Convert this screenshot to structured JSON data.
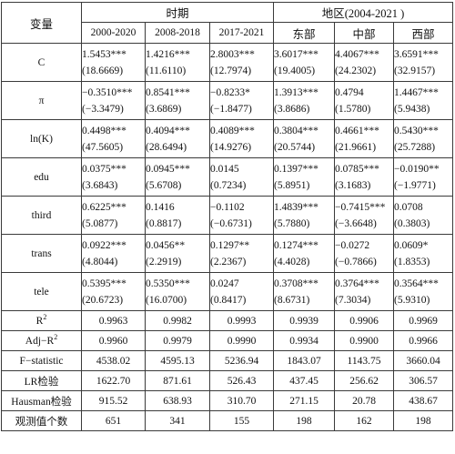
{
  "header": {
    "variable_label": "变量",
    "period_group": "时期",
    "region_group": "地区(2004-2021 )",
    "columns": [
      "2000-2020",
      "2008-2018",
      "2017-2021",
      "东部",
      "中部",
      "西部"
    ]
  },
  "coef_rows": [
    {
      "label": "C",
      "coef": [
        "1.5453***",
        "1.4216***",
        "2.8003***",
        "3.6017***",
        "4.4067***",
        "3.6591***"
      ],
      "tstat": [
        "(18.6669)",
        "(11.6110)",
        "(12.7974)",
        "(19.4005)",
        "(24.2302)",
        "(32.9157)"
      ]
    },
    {
      "label": "π",
      "coef": [
        "−0.3510***",
        "0.8541***",
        "−0.8233*",
        "1.3913***",
        "0.4794",
        "1.4467***"
      ],
      "tstat": [
        "(−3.3479)",
        "(3.6869)",
        "(−1.8477)",
        "(3.8686)",
        "(1.5780)",
        "(5.9438)"
      ]
    },
    {
      "label": "ln(K)",
      "coef": [
        "0.4498***",
        "0.4094***",
        "0.4089***",
        "0.3804***",
        "0.4661***",
        "0.5430***"
      ],
      "tstat": [
        "(47.5605)",
        "(28.6494)",
        "(14.9276)",
        "(20.5744)",
        "(21.9661)",
        "(25.7288)"
      ]
    },
    {
      "label": "edu",
      "coef": [
        "0.0375***",
        "0.0945***",
        "0.0145",
        "0.1397***",
        "0.0785***",
        "−0.0190**"
      ],
      "tstat": [
        "(3.6843)",
        "(5.6708)",
        "(0.7234)",
        "(5.8951)",
        "(3.1683)",
        "(−1.9771)"
      ]
    },
    {
      "label": "third",
      "coef": [
        "0.6225***",
        "0.1416",
        "−0.1102",
        "1.4839***",
        "−0.7415***",
        "0.0708"
      ],
      "tstat": [
        "(5.0877)",
        "(0.8817)",
        "(−0.6731)",
        "(5.7880)",
        "(−3.6648)",
        "(0.3803)"
      ]
    },
    {
      "label": "trans",
      "coef": [
        "0.0922***",
        "0.0456**",
        "0.1297**",
        "0.1274***",
        "−0.0272",
        "0.0609*"
      ],
      "tstat": [
        "(4.8044)",
        "(2.2919)",
        "(2.2367)",
        "(4.4028)",
        "(−0.7866)",
        "(1.8353)"
      ]
    },
    {
      "label": "tele",
      "coef": [
        "0.5395***",
        "0.5350***",
        "0.0247",
        "0.3708***",
        "0.3764***",
        "0.3564***"
      ],
      "tstat": [
        "(20.6723)",
        "(16.0700)",
        "(0.8417)",
        "(8.6731)",
        "(7.3034)",
        "(5.9310)"
      ]
    }
  ],
  "stat_rows": [
    {
      "label": "R",
      "label_sup": "2",
      "values": [
        "0.9963",
        "0.9982",
        "0.9993",
        "0.9939",
        "0.9906",
        "0.9969"
      ]
    },
    {
      "label": "Adj−R",
      "label_sup": "2",
      "values": [
        "0.9960",
        "0.9979",
        "0.9990",
        "0.9934",
        "0.9900",
        "0.9966"
      ]
    },
    {
      "label": "F−statistic",
      "label_sup": "",
      "values": [
        "4538.02",
        "4595.13",
        "5236.94",
        "1843.07",
        "1143.75",
        "3660.04"
      ]
    },
    {
      "label": "LR检验",
      "label_sup": "",
      "values": [
        "1622.70",
        "871.61",
        "526.43",
        "437.45",
        "256.62",
        "306.57"
      ]
    },
    {
      "label": "Hausman检验",
      "label_sup": "",
      "values": [
        "915.52",
        "638.93",
        "310.70",
        "271.15",
        "20.78",
        "438.67"
      ]
    },
    {
      "label": "观测值个数",
      "label_sup": "",
      "values": [
        "651",
        "341",
        "155",
        "198",
        "162",
        "198"
      ]
    }
  ]
}
